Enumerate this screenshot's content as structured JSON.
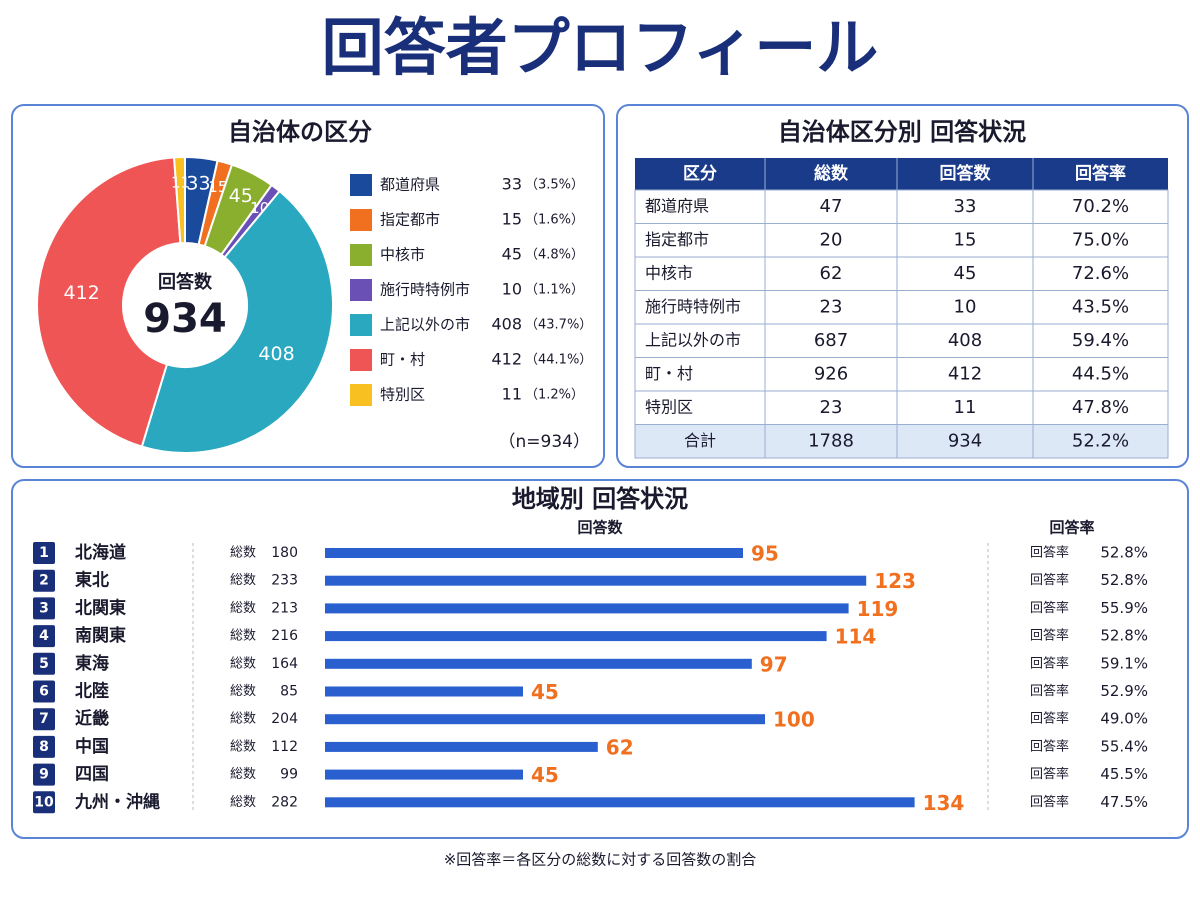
{
  "title": "回答者プロフィール",
  "chart_data": [
    {
      "type": "pie",
      "title": "自治体の区分",
      "categories": [
        "都道府県",
        "指定都市",
        "中核市",
        "施行時特例市",
        "上記以外の市",
        "町・村",
        "特別区"
      ],
      "values": [
        33,
        15,
        45,
        10,
        408,
        412,
        11
      ],
      "percent_labels": [
        "（3.5%）",
        "（1.6%）",
        "（4.8%）",
        "（1.1%）",
        "（43.7%）",
        "（44.1%）",
        "（1.2%）"
      ],
      "colors": [
        "#1a4a9c",
        "#f07020",
        "#8aae2e",
        "#6a4fb5",
        "#2aa8c0",
        "#f05555",
        "#f8c020"
      ],
      "center_label": "回答数",
      "total": 934,
      "note": "（n=934）"
    },
    {
      "type": "bar",
      "orientation": "horizontal",
      "title": "地域別 回答状況",
      "value_header": "回答数",
      "rate_header": "回答率",
      "ranks": [
        1,
        2,
        3,
        4,
        5,
        6,
        7,
        8,
        9,
        10
      ],
      "categories": [
        "北海道",
        "東北",
        "北関東",
        "南関東",
        "東海",
        "北陸",
        "近畿",
        "中国",
        "四国",
        "九州・沖縄"
      ],
      "total_label": "総数",
      "totals": [
        180,
        233,
        213,
        216,
        164,
        85,
        204,
        112,
        99,
        282
      ],
      "values": [
        95,
        123,
        119,
        114,
        97,
        45,
        100,
        62,
        45,
        134
      ],
      "rate_label": "回答率",
      "rate_labels": [
        "52.8%",
        "52.8%",
        "55.9%",
        "52.8%",
        "59.1%",
        "52.9%",
        "49.0%",
        "55.4%",
        "45.5%",
        "47.5%"
      ],
      "color": "#2a5fcf",
      "label_color": "#f07020",
      "xlim": [
        0,
        140
      ]
    }
  ],
  "table": {
    "title": "自治体区分別 回答状況",
    "columns": [
      "区分",
      "総数",
      "回答数",
      "回答率"
    ],
    "rows": [
      [
        "都道府県",
        47,
        33,
        "70.2%"
      ],
      [
        "指定都市",
        20,
        15,
        "75.0%"
      ],
      [
        "中核市",
        62,
        45,
        "72.6%"
      ],
      [
        "施行時特例市",
        23,
        10,
        "43.5%"
      ],
      [
        "上記以外の市",
        687,
        408,
        "59.4%"
      ],
      [
        "町・村",
        926,
        412,
        "44.5%"
      ],
      [
        "特別区",
        23,
        11,
        "47.8%"
      ]
    ],
    "total_row": [
      "合計",
      1788,
      934,
      "52.2%"
    ]
  },
  "footnote": "※回答率＝各区分の総数に対する回答数の割合"
}
